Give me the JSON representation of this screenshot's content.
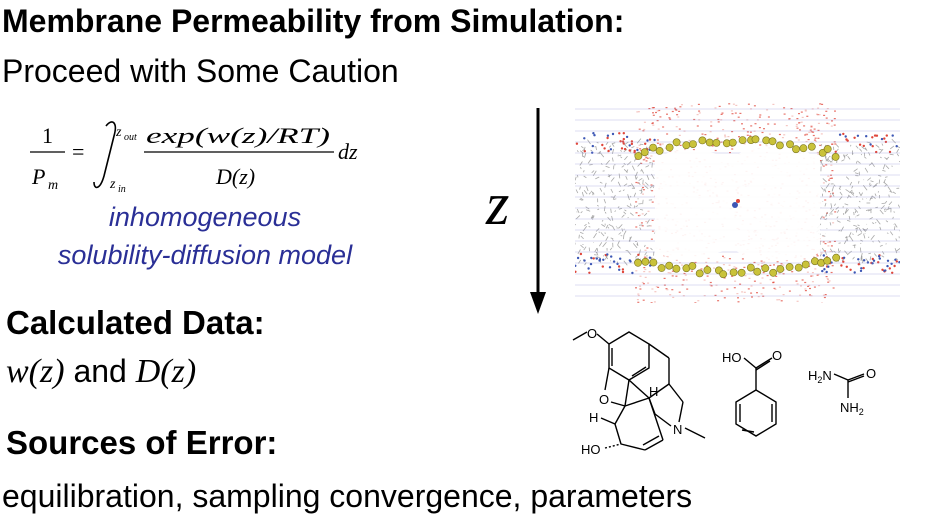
{
  "title": "Membrane Permeability from Simulation:",
  "subtitle": "Proceed with Some Caution",
  "formula": {
    "numerator_one": "1",
    "p_m": "P",
    "p_m_sub": "m",
    "equals": "=",
    "upper_limit": "z",
    "upper_limit_sub": "out",
    "lower_limit": "z",
    "lower_limit_sub": "in",
    "integrand_numerator": "exp(w(z)/RT)",
    "integrand_denominator": "D(z)",
    "differential": "dz"
  },
  "model_label": {
    "line1": "inhomogeneous",
    "line2": "solubility-diffusion model"
  },
  "calculated": {
    "heading": "Calculated Data:",
    "w": "w(z)",
    "and": "and",
    "d": "D(z)"
  },
  "errors": {
    "heading": "Sources of Error:",
    "body": "equilibration, sampling convergence, parameters"
  },
  "axis_label": "z",
  "molecules": {
    "morphine": {
      "methoxy_o": "O",
      "ring_o": "O",
      "h1": "H",
      "h2": "H",
      "n": "N",
      "ho": "HO"
    },
    "benzoic": {
      "ho": "HO",
      "o": "O"
    },
    "urea": {
      "h2n": "H2N",
      "o": "O",
      "nh2": "NH2"
    }
  },
  "colors": {
    "model_text": "#2a2f96",
    "headgroup_sphere": "#c9c23a",
    "lipid_tails": "#9a9a9a",
    "water_red": "#e0463a",
    "slab_lines": "#8c8fd6"
  }
}
